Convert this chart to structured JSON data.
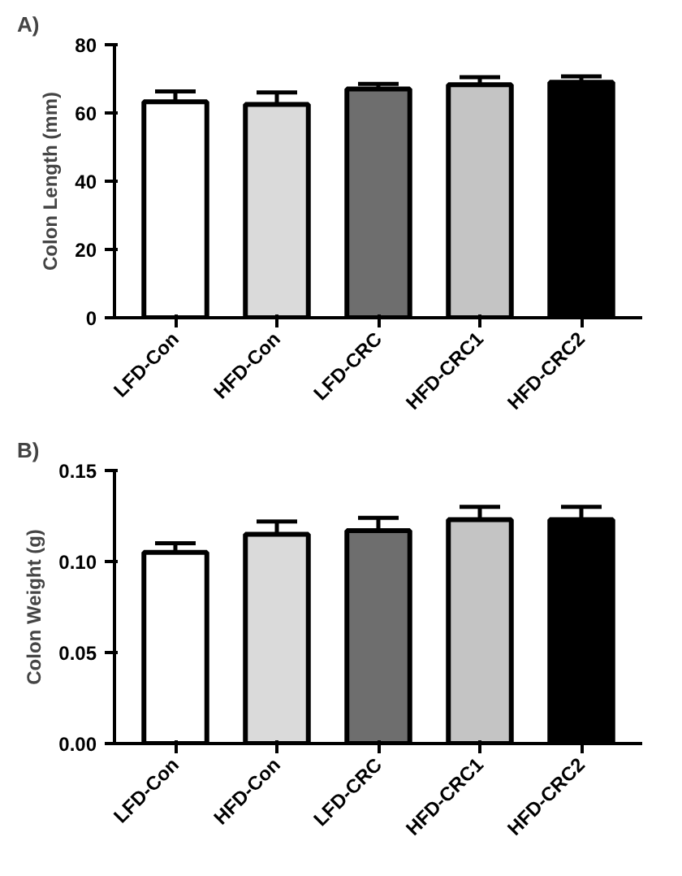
{
  "chart_data": [
    {
      "type": "bar",
      "title": "A)",
      "ylabel": "Colon Length (mm)",
      "categories": [
        "LFD-Con",
        "HFD-Con",
        "LFD-CRC",
        "HFD-CRC1",
        "HFD-CRC2"
      ],
      "values": [
        63.3,
        62.5,
        67,
        68.3,
        69
      ],
      "errors": [
        3,
        3.5,
        1.5,
        2.2,
        1.7
      ],
      "colors": [
        "#ffffff",
        "#dadada",
        "#6e6e6e",
        "#c4c4c4",
        "#000000"
      ],
      "ylim": [
        0,
        80
      ],
      "yticks": [
        0,
        20,
        40,
        60,
        80
      ]
    },
    {
      "type": "bar",
      "title": "B)",
      "ylabel": "Colon Weight (g)",
      "categories": [
        "LFD-Con",
        "HFD-Con",
        "LFD-CRC",
        "HFD-CRC1",
        "HFD-CRC2"
      ],
      "values": [
        0.105,
        0.115,
        0.117,
        0.123,
        0.123
      ],
      "errors": [
        0.005,
        0.007,
        0.007,
        0.007,
        0.007
      ],
      "colors": [
        "#ffffff",
        "#dadada",
        "#6e6e6e",
        "#c4c4c4",
        "#000000"
      ],
      "ylim": [
        0,
        0.15
      ],
      "yticks": [
        {
          "value": 0,
          "label": "0.00"
        },
        {
          "value": 0.05,
          "label": "0.05"
        },
        {
          "value": 0.1,
          "label": "0.10"
        },
        {
          "value": 0.15,
          "label": "0.15"
        }
      ]
    }
  ]
}
